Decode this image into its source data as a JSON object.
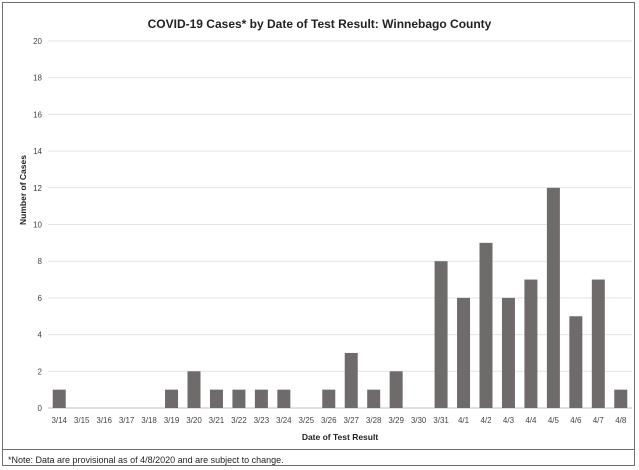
{
  "chart_data": {
    "type": "bar",
    "title": "COVID-19 Cases* by Date of Test Result: Winnebago County",
    "xlabel": "Date of Test Result",
    "ylabel": "Number of Cases",
    "ylim": [
      0,
      20
    ],
    "yticks": [
      0,
      2,
      4,
      6,
      8,
      10,
      12,
      14,
      16,
      18,
      20
    ],
    "grid": true,
    "bar_color": "#706b6b",
    "categories": [
      "3/14",
      "3/15",
      "3/16",
      "3/17",
      "3/18",
      "3/19",
      "3/20",
      "3/21",
      "3/22",
      "3/23",
      "3/24",
      "3/25",
      "3/26",
      "3/27",
      "3/28",
      "3/29",
      "3/30",
      "3/31",
      "4/1",
      "4/2",
      "4/3",
      "4/4",
      "4/5",
      "4/6",
      "4/7",
      "4/8"
    ],
    "values": [
      1,
      0,
      0,
      0,
      0,
      1,
      2,
      1,
      1,
      1,
      1,
      0,
      1,
      3,
      1,
      2,
      0,
      8,
      6,
      9,
      6,
      7,
      12,
      5,
      7,
      1
    ]
  },
  "footnote": "*Note: Data are provisional as of 4/8/2020 and are subject to change."
}
